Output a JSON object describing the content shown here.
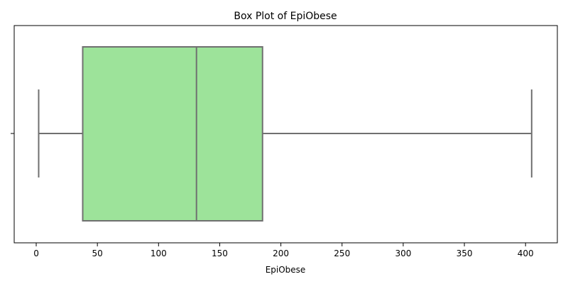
{
  "chart_data": {
    "type": "box",
    "title": "Box Plot of EpiObese",
    "xlabel": "EpiObese",
    "ylabel": "",
    "xlim": [
      -18,
      426
    ],
    "xticks": [
      0,
      50,
      100,
      150,
      200,
      250,
      300,
      350,
      400
    ],
    "grid": false,
    "box": {
      "whisker_low": 2,
      "q1": 38,
      "median": 131,
      "q3": 185,
      "whisker_high": 405
    },
    "colors": {
      "box_fill": "#9de39a",
      "line": "#707070",
      "axis": "#000000"
    }
  }
}
